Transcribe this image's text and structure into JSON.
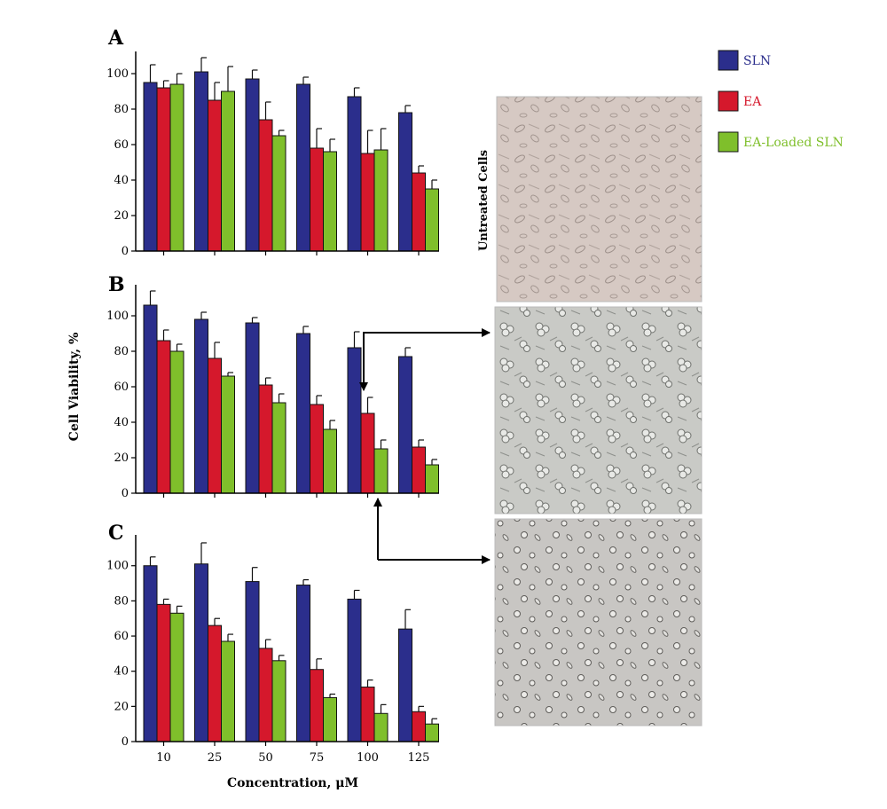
{
  "colors": {
    "SLN": "#2b2e8c",
    "EA": "#d5182c",
    "EA-Loaded SLN": "#7fbf2b",
    "axis": "#000000"
  },
  "legend": [
    "SLN",
    "EA",
    "EA-Loaded SLN"
  ],
  "ylabel": "Cell Viability, %",
  "xlabel": "Concentration, μM",
  "image_label": "Untreated Cells",
  "chart_data": [
    {
      "type": "bar",
      "panel": "A",
      "categories": [
        "10",
        "25",
        "50",
        "75",
        "100",
        "125"
      ],
      "ylim": [
        0,
        110
      ],
      "yticks": [
        0,
        20,
        40,
        60,
        80,
        100
      ],
      "series": [
        {
          "name": "SLN",
          "values": [
            95,
            101,
            97,
            94,
            87,
            78
          ],
          "errors": [
            10,
            8,
            5,
            4,
            5,
            4
          ]
        },
        {
          "name": "EA",
          "values": [
            92,
            85,
            74,
            58,
            55,
            44
          ],
          "errors": [
            4,
            10,
            10,
            11,
            13,
            4
          ]
        },
        {
          "name": "EA-Loaded SLN",
          "values": [
            94,
            90,
            65,
            56,
            57,
            35
          ],
          "errors": [
            6,
            14,
            3,
            7,
            12,
            5
          ]
        }
      ]
    },
    {
      "type": "bar",
      "panel": "B",
      "categories": [
        "10",
        "25",
        "50",
        "75",
        "100",
        "125"
      ],
      "ylim": [
        0,
        115
      ],
      "yticks": [
        0,
        20,
        40,
        60,
        80,
        100
      ],
      "series": [
        {
          "name": "SLN",
          "values": [
            106,
            98,
            96,
            90,
            82,
            77
          ],
          "errors": [
            8,
            4,
            3,
            4,
            9,
            5
          ]
        },
        {
          "name": "EA",
          "values": [
            86,
            76,
            61,
            50,
            45,
            26
          ],
          "errors": [
            6,
            9,
            4,
            5,
            9,
            4
          ]
        },
        {
          "name": "EA-Loaded SLN",
          "values": [
            80,
            66,
            51,
            36,
            25,
            16
          ],
          "errors": [
            4,
            2,
            5,
            5,
            5,
            3
          ]
        }
      ]
    },
    {
      "type": "bar",
      "panel": "C",
      "categories": [
        "10",
        "25",
        "50",
        "75",
        "100",
        "125"
      ],
      "ylim": [
        0,
        115
      ],
      "yticks": [
        0,
        20,
        40,
        60,
        80,
        100
      ],
      "series": [
        {
          "name": "SLN",
          "values": [
            100,
            101,
            91,
            89,
            81,
            64
          ],
          "errors": [
            5,
            12,
            8,
            3,
            5,
            11
          ]
        },
        {
          "name": "EA",
          "values": [
            78,
            66,
            53,
            41,
            31,
            17
          ],
          "errors": [
            3,
            4,
            5,
            6,
            4,
            3
          ]
        },
        {
          "name": "EA-Loaded SLN",
          "values": [
            73,
            57,
            46,
            25,
            16,
            10
          ],
          "errors": [
            4,
            4,
            3,
            2,
            5,
            3
          ]
        }
      ]
    }
  ]
}
